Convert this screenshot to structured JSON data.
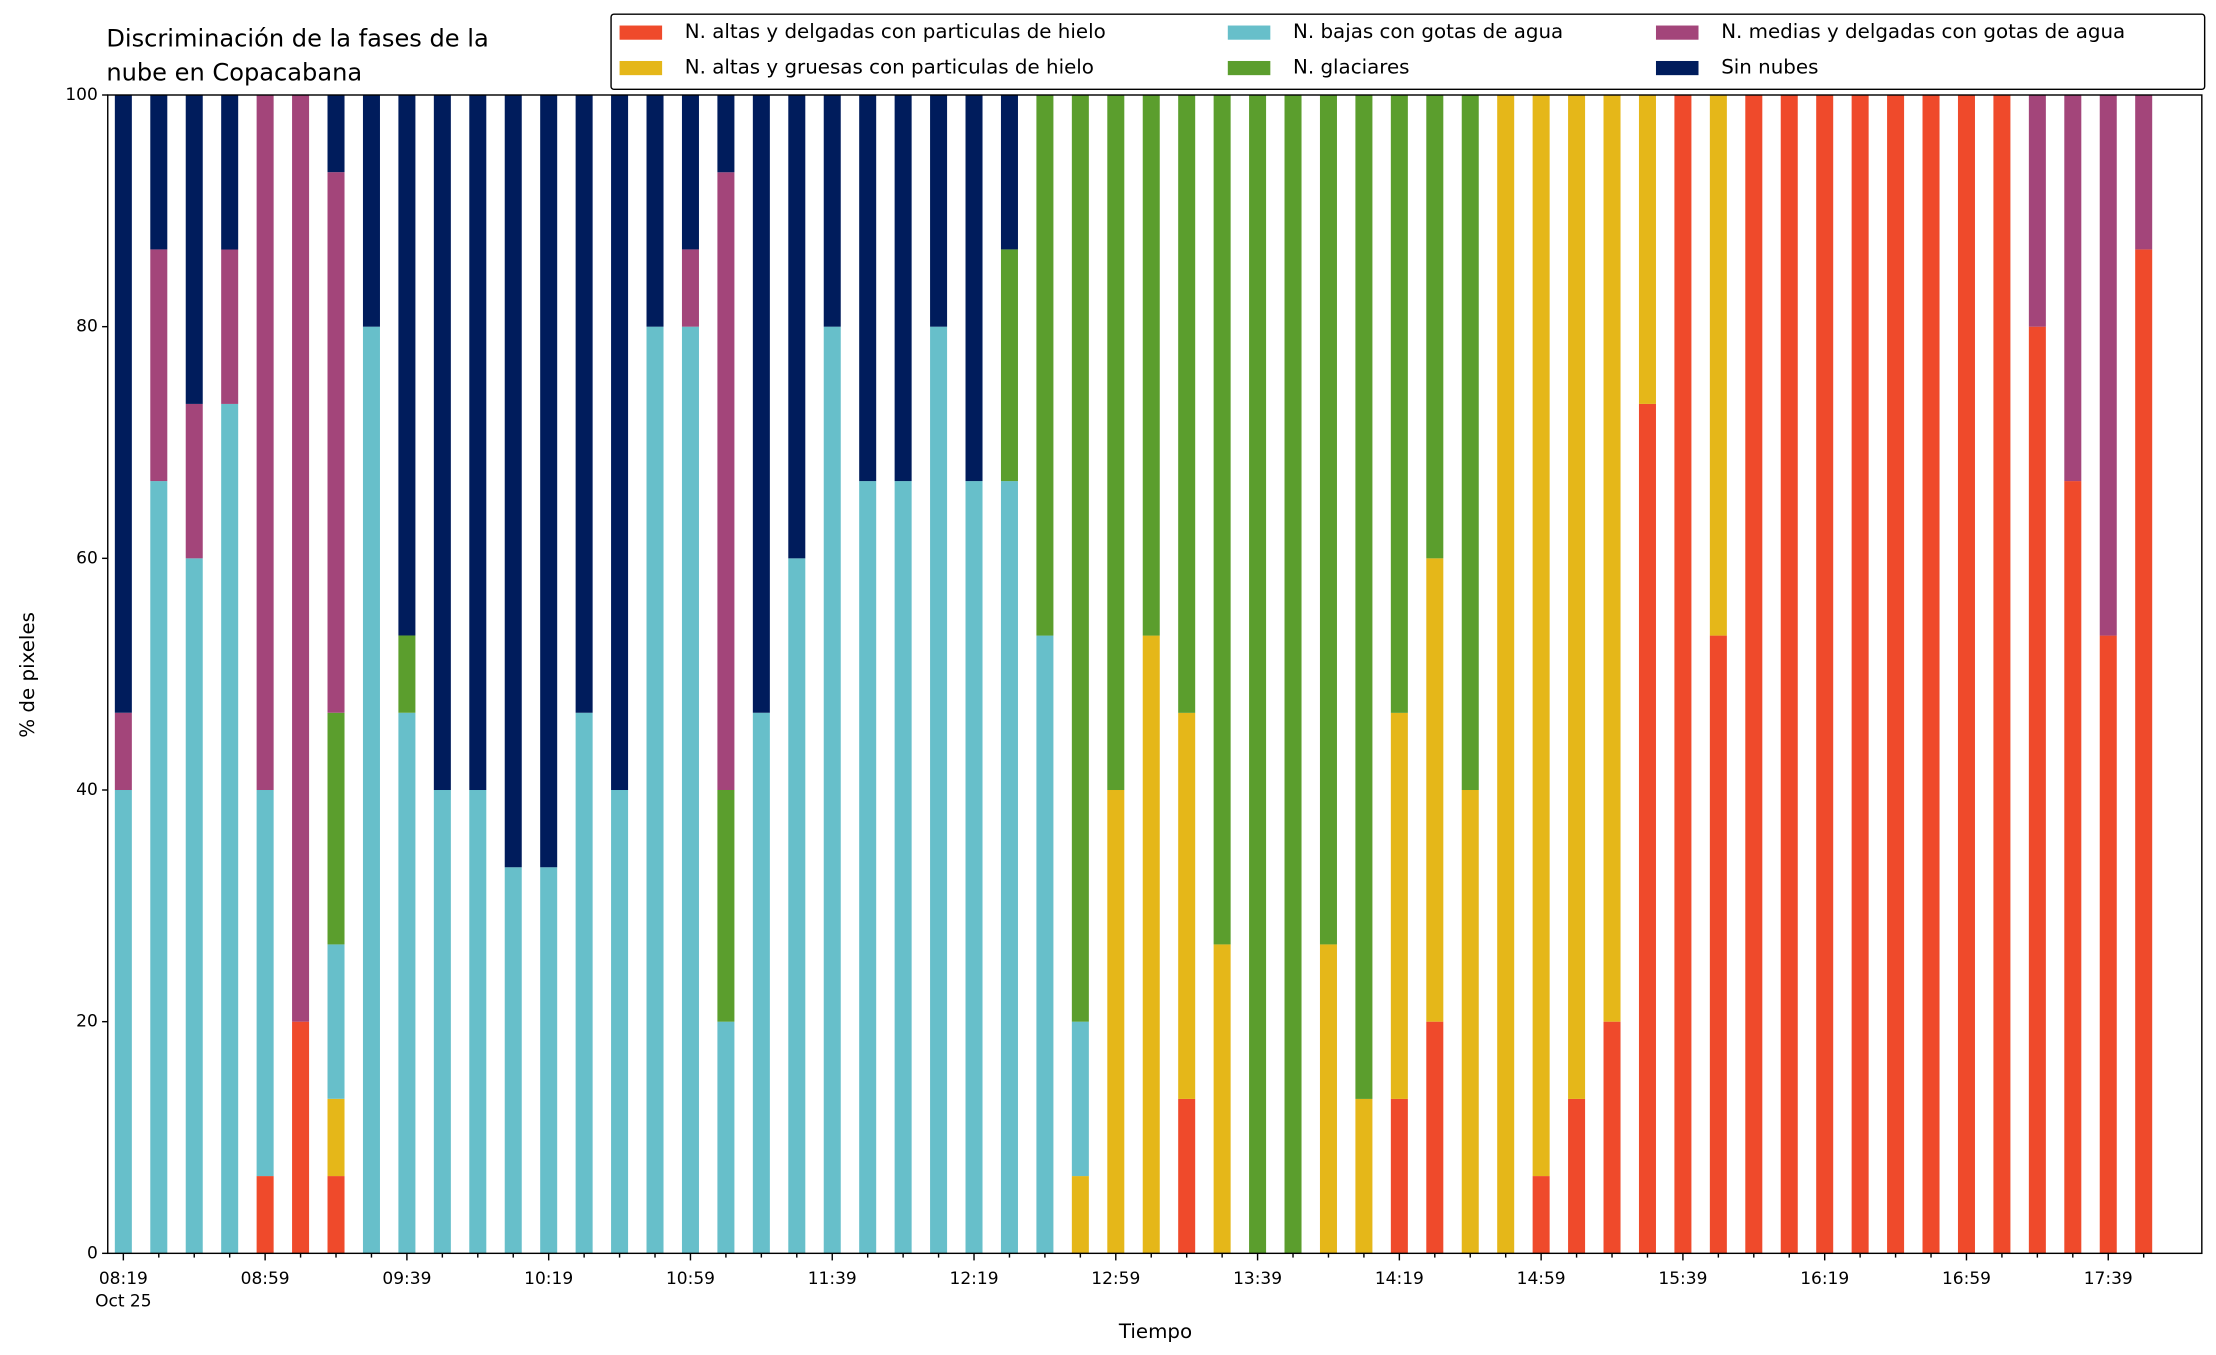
{
  "chart_data": {
    "type": "stacked_bar",
    "title": [
      "Discriminación de la fases de la",
      "nube en Copacabana"
    ],
    "x_label": "Tiempo",
    "y_label": "% de pixeles",
    "date_label": "Oct 25",
    "categories": [
      "08:19",
      null,
      null,
      null,
      "08:59",
      null,
      null,
      null,
      "09:39",
      null,
      null,
      null,
      "10:19",
      null,
      null,
      null,
      "10:59",
      null,
      null,
      null,
      "11:39",
      null,
      null,
      null,
      "12:19",
      null,
      null,
      null,
      "12:59",
      null,
      null,
      null,
      "13:39",
      null,
      null,
      null,
      "14:19",
      null,
      null,
      null,
      "14:59",
      null,
      null,
      null,
      "15:39",
      null,
      null,
      null,
      "16:19",
      null,
      null,
      null,
      "16:59",
      null,
      null,
      null,
      "17:39",
      null
    ],
    "ylim": [
      0,
      100
    ],
    "yticks": [
      0,
      20,
      40,
      60,
      80,
      100
    ],
    "grid": false,
    "legend": "upper right",
    "series": [
      {
        "name": "N. altas y delgadas con particulas de hielo",
        "color": "#ef4a2b",
        "values": [
          0,
          0,
          0,
          0,
          6.67,
          20,
          6.67,
          0,
          0,
          0,
          0,
          0,
          0,
          0,
          0,
          0,
          0,
          0,
          0,
          0,
          0,
          0,
          0,
          0,
          0,
          0,
          0,
          0,
          0,
          0,
          13.33,
          0,
          0,
          0,
          0,
          0,
          13.33,
          20,
          0,
          0,
          6.67,
          13.33,
          20,
          73.33,
          100,
          53.33,
          100,
          100,
          100,
          100,
          100,
          100,
          100,
          100,
          80,
          66.67,
          53.33,
          86.67
        ]
      },
      {
        "name": "N. altas y gruesas con particulas de hielo",
        "color": "#e5b719",
        "values": [
          0,
          0,
          0,
          0,
          0,
          0,
          6.67,
          0,
          0,
          0,
          0,
          0,
          0,
          0,
          0,
          0,
          0,
          0,
          0,
          0,
          0,
          0,
          0,
          0,
          0,
          0,
          0,
          6.67,
          40,
          53.33,
          33.33,
          26.67,
          0,
          0,
          26.67,
          13.33,
          33.33,
          40,
          40,
          100,
          93.33,
          86.67,
          80,
          26.67,
          0,
          46.67,
          0,
          0,
          0,
          0,
          0,
          0,
          0,
          0,
          0,
          0,
          0,
          0
        ]
      },
      {
        "name": "N. bajas con gotas de agua",
        "color": "#67bfca",
        "values": [
          40,
          66.67,
          60,
          73.33,
          33.33,
          0,
          13.33,
          80,
          46.67,
          40,
          40,
          33.33,
          33.33,
          46.67,
          40,
          80,
          80,
          20,
          46.67,
          60,
          80,
          66.67,
          66.67,
          80,
          66.67,
          66.67,
          53.33,
          13.33,
          0,
          0,
          0,
          0,
          0,
          0,
          0,
          0,
          0,
          0,
          0,
          0,
          0,
          0,
          0,
          0,
          0,
          0,
          0,
          0,
          0,
          0,
          0,
          0,
          0,
          0,
          0,
          0,
          0,
          0
        ]
      },
      {
        "name": "N. glaciares",
        "color": "#5b9e2d",
        "values": [
          0,
          0,
          0,
          0,
          0,
          0,
          20,
          0,
          6.67,
          0,
          0,
          0,
          0,
          0,
          0,
          0,
          0,
          20,
          0,
          0,
          0,
          0,
          0,
          0,
          0,
          20,
          46.67,
          80,
          60,
          46.67,
          53.33,
          73.33,
          100,
          100,
          73.33,
          86.67,
          53.33,
          40,
          60,
          0,
          0,
          0,
          0,
          0,
          0,
          0,
          0,
          0,
          0,
          0,
          0,
          0,
          0,
          0,
          0,
          0,
          0,
          0
        ]
      },
      {
        "name": "N. medias y delgadas con gotas de agua",
        "color": "#a3457a",
        "values": [
          6.67,
          20,
          13.33,
          13.33,
          60,
          80,
          46.67,
          0,
          0,
          0,
          0,
          0,
          0,
          0,
          0,
          0,
          6.67,
          53.33,
          0,
          0,
          0,
          0,
          0,
          0,
          0,
          0,
          0,
          0,
          0,
          0,
          0,
          0,
          0,
          0,
          0,
          0,
          0,
          0,
          0,
          0,
          0,
          0,
          0,
          0,
          0,
          0,
          0,
          0,
          0,
          0,
          0,
          0,
          0,
          0,
          20,
          33.33,
          46.67,
          13.33
        ]
      },
      {
        "name": "Sin nubes",
        "color": "#001c5c",
        "values": [
          53.33,
          13.33,
          26.67,
          13.33,
          0,
          0,
          6.67,
          20,
          46.67,
          60,
          60,
          66.67,
          66.67,
          53.33,
          60,
          20,
          13.33,
          6.67,
          53.33,
          40,
          20,
          33.33,
          33.33,
          20,
          33.33,
          13.33,
          0,
          0,
          0,
          0,
          0,
          0,
          0,
          0,
          0,
          0,
          0,
          0,
          0,
          0,
          0,
          0,
          0,
          0,
          0,
          0,
          0,
          0,
          0,
          0,
          0,
          0,
          0,
          0,
          0,
          0,
          0,
          0
        ]
      }
    ]
  }
}
